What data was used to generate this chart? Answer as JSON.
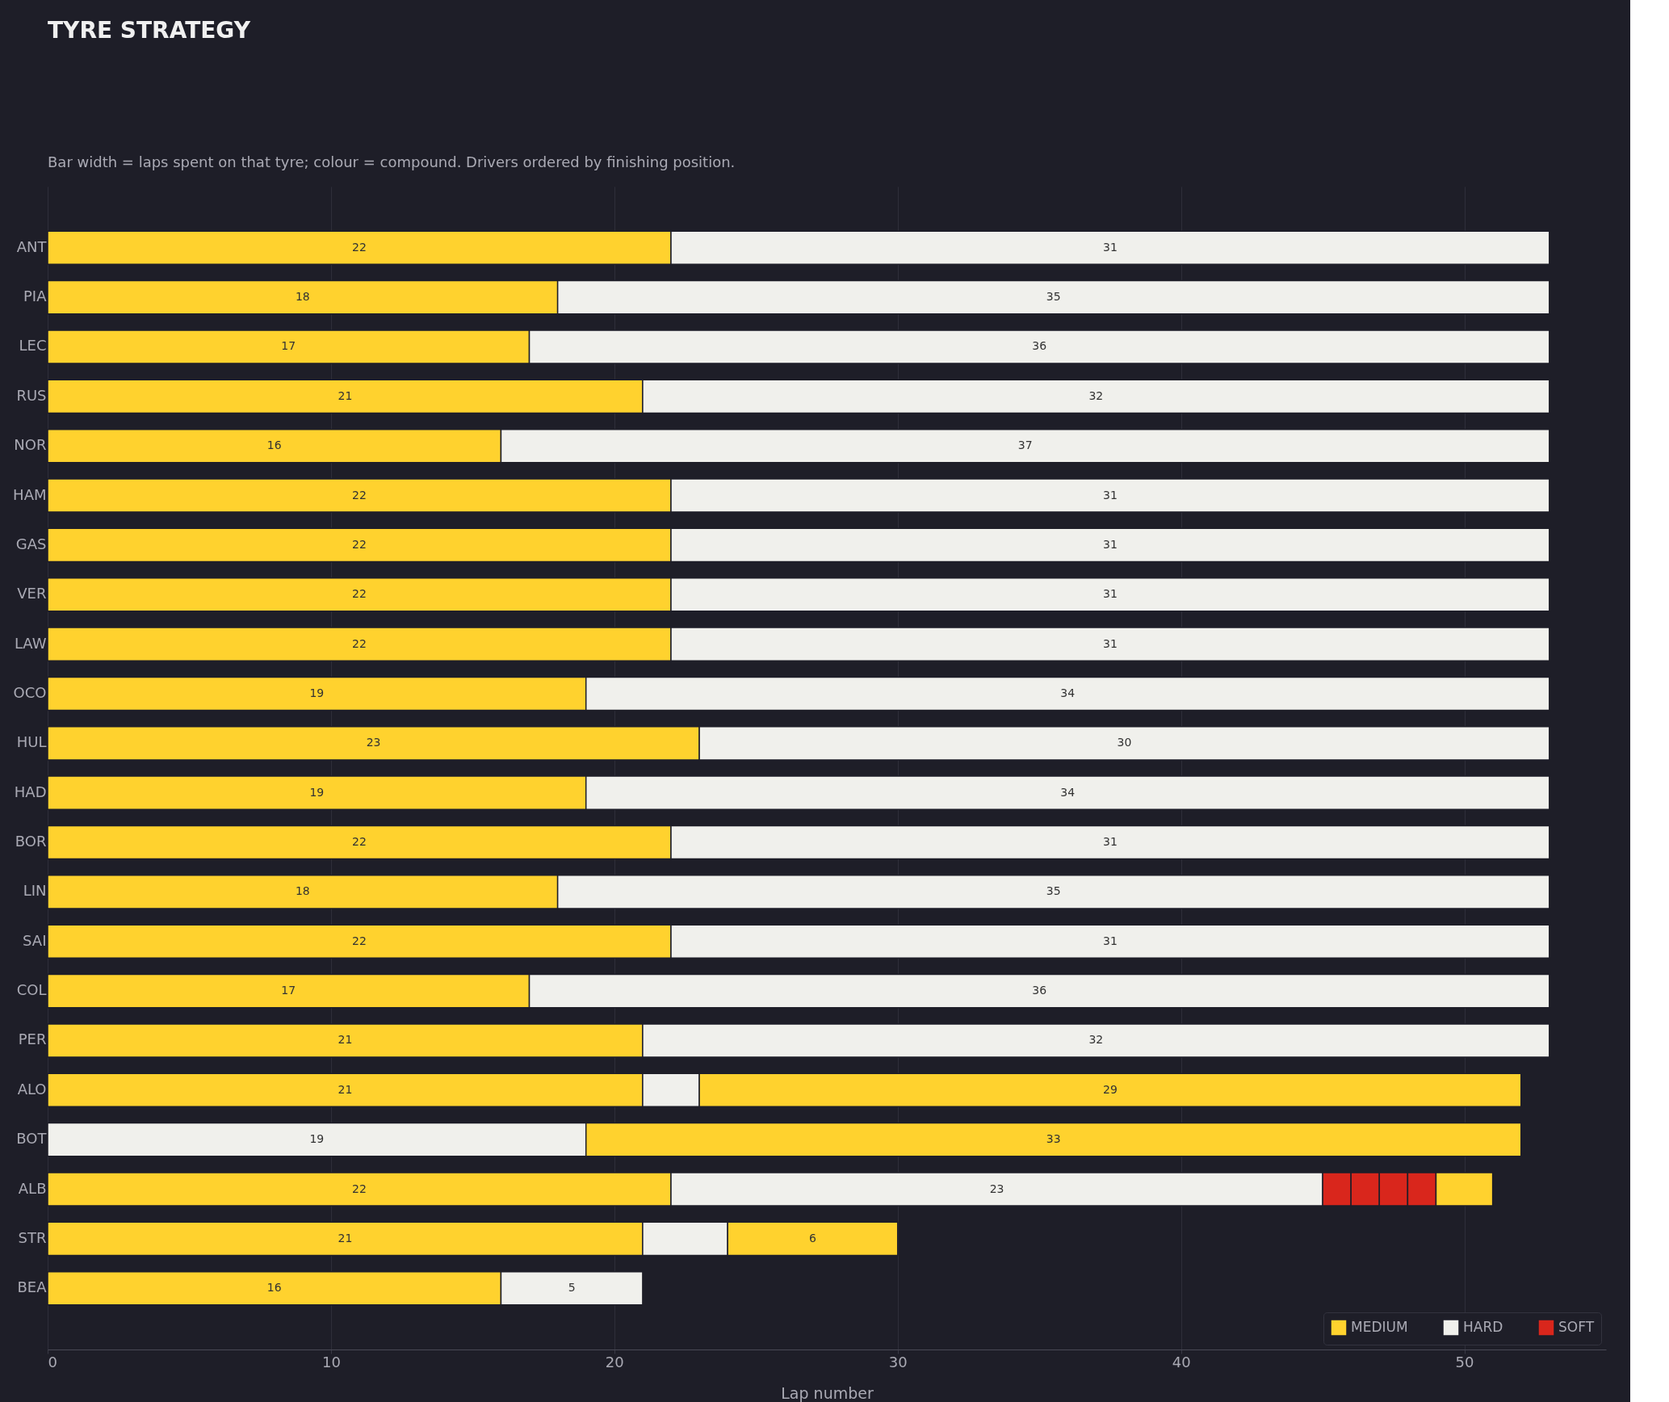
{
  "chart_data": {
    "type": "bar",
    "orientation": "horizontal",
    "stacked": true,
    "title": "TYRE STRATEGY",
    "subtitle": "Bar width = laps spent on that tyre; colour = compound. Drivers ordered by finishing position.",
    "xlabel": "Lap number",
    "categories": [
      "ANT",
      "PIA",
      "LEC",
      "RUS",
      "NOR",
      "HAM",
      "GAS",
      "VER",
      "LAW",
      "OCO",
      "HUL",
      "HAD",
      "BOR",
      "LIN",
      "SAI",
      "COL",
      "PER",
      "ALO",
      "BOT",
      "ALB",
      "STR",
      "BEA"
    ],
    "series": [
      {
        "name": "MEDIUM",
        "color": "#ffd22e",
        "values": [
          22,
          18,
          17,
          21,
          16,
          22,
          22,
          22,
          22,
          19,
          23,
          19,
          22,
          18,
          22,
          17,
          21,
          21,
          null,
          22,
          21,
          16
        ],
        "value_labels": [
          "22",
          "18",
          "17",
          "21",
          "16",
          "22",
          "22",
          "22",
          "22",
          "19",
          "23",
          "19",
          "22",
          "18",
          "22",
          "17",
          "21",
          "21",
          null,
          "22",
          "21",
          "16"
        ]
      },
      {
        "name": "HARD",
        "color": "#f0f0ec",
        "values": [
          null,
          null,
          null,
          null,
          null,
          null,
          null,
          null,
          null,
          null,
          null,
          null,
          null,
          null,
          null,
          null,
          null,
          null,
          19,
          null,
          null,
          null
        ],
        "value_labels": [
          null,
          null,
          null,
          null,
          null,
          null,
          null,
          null,
          null,
          null,
          null,
          null,
          null,
          null,
          null,
          null,
          null,
          null,
          "19",
          null,
          null,
          null
        ]
      },
      {
        "color": "#f0f0ec",
        "values": [
          31,
          35,
          36,
          32,
          37,
          31,
          31,
          31,
          31,
          34,
          30,
          34,
          31,
          35,
          31,
          36,
          32,
          2,
          null,
          23,
          3,
          5
        ],
        "value_labels": [
          "31",
          "35",
          "36",
          "32",
          "37",
          "31",
          "31",
          "31",
          "31",
          "34",
          "30",
          "34",
          "31",
          "35",
          "31",
          "36",
          "32",
          null,
          null,
          "23",
          null,
          "5"
        ]
      },
      {
        "color": "#ffd22e",
        "values": [
          null,
          null,
          null,
          null,
          null,
          null,
          null,
          null,
          null,
          null,
          null,
          null,
          null,
          null,
          null,
          null,
          null,
          29,
          33,
          null,
          6,
          null
        ],
        "value_labels": [
          null,
          null,
          null,
          null,
          null,
          null,
          null,
          null,
          null,
          null,
          null,
          null,
          null,
          null,
          null,
          null,
          null,
          "29",
          "33",
          null,
          "6",
          null
        ]
      },
      {
        "name": "SOFT",
        "color": "#d9261c",
        "values": [
          null,
          null,
          null,
          null,
          null,
          null,
          null,
          null,
          null,
          null,
          null,
          null,
          null,
          null,
          null,
          null,
          null,
          null,
          null,
          1,
          null,
          null
        ]
      },
      {
        "color": "#d9261c",
        "values": [
          null,
          null,
          null,
          null,
          null,
          null,
          null,
          null,
          null,
          null,
          null,
          null,
          null,
          null,
          null,
          null,
          null,
          null,
          null,
          1,
          null,
          null
        ]
      },
      {
        "color": "#d9261c",
        "values": [
          null,
          null,
          null,
          null,
          null,
          null,
          null,
          null,
          null,
          null,
          null,
          null,
          null,
          null,
          null,
          null,
          null,
          null,
          null,
          1,
          null,
          null
        ]
      },
      {
        "color": "#d9261c",
        "values": [
          null,
          null,
          null,
          null,
          null,
          null,
          null,
          null,
          null,
          null,
          null,
          null,
          null,
          null,
          null,
          null,
          null,
          null,
          null,
          1,
          null,
          null
        ]
      },
      {
        "color": "#ffd22e",
        "values": [
          null,
          null,
          null,
          null,
          null,
          null,
          null,
          null,
          null,
          null,
          null,
          null,
          null,
          null,
          null,
          null,
          null,
          null,
          null,
          2,
          null,
          null
        ]
      }
    ],
    "xlim": [
      0,
      55
    ],
    "xticks": [
      0,
      10,
      20,
      30,
      40,
      50
    ],
    "grid": "x",
    "legend": "bottom right"
  }
}
